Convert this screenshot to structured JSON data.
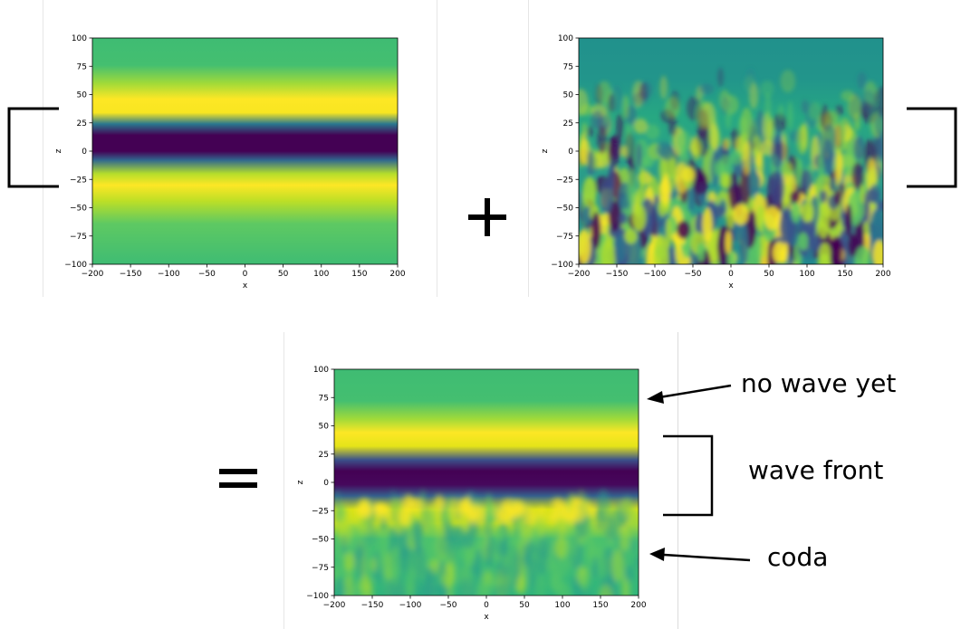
{
  "operators": {
    "plus": "+",
    "equals": "="
  },
  "annotations": {
    "no_wave_yet": "no wave yet",
    "wave_front": "wave front",
    "coda": "coda"
  },
  "colors": {
    "viridis_dark": "#440154",
    "viridis_mid": "#21918c",
    "viridis_green": "#3fbc73",
    "viridis_yellow": "#fde725"
  },
  "chart_data": [
    {
      "type": "heatmap",
      "description_ref": "smooth wavefield",
      "xlabel": "x",
      "ylabel": "z",
      "xlim": [
        -200,
        200
      ],
      "ylim": [
        -100,
        100
      ],
      "xticks": [
        "−200",
        "−150",
        "−100",
        "−50",
        "0",
        "50",
        "100",
        "150",
        "200"
      ],
      "yticks": [
        "100",
        "75",
        "50",
        "25",
        "0",
        "−25",
        "−50",
        "−75",
        "−100"
      ]
    },
    {
      "type": "heatmap",
      "description_ref": "scattered wavefield",
      "xlabel": "x",
      "ylabel": "z",
      "xlim": [
        -200,
        200
      ],
      "ylim": [
        -100,
        100
      ],
      "xticks": [
        "−200",
        "−150",
        "−100",
        "−50",
        "0",
        "50",
        "100",
        "150",
        "200"
      ],
      "yticks": [
        "100",
        "75",
        "50",
        "25",
        "0",
        "−25",
        "−50",
        "−75",
        "−100"
      ]
    },
    {
      "type": "heatmap",
      "description_ref": "total wavefield",
      "xlabel": "x",
      "ylabel": "z",
      "xlim": [
        -200,
        200
      ],
      "ylim": [
        -100,
        100
      ],
      "xticks": [
        "−200",
        "−150",
        "−100",
        "−50",
        "0",
        "50",
        "100",
        "150",
        "200"
      ],
      "yticks": [
        "100",
        "75",
        "50",
        "25",
        "0",
        "−25",
        "−50",
        "−75",
        "−100"
      ]
    }
  ]
}
